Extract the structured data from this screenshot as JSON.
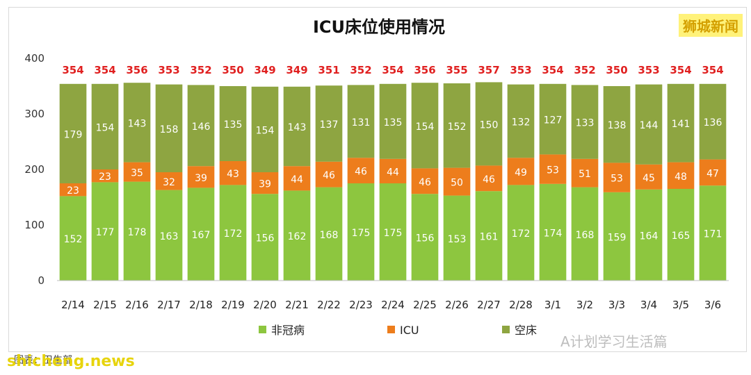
{
  "brand_tag": "狮城新闻",
  "watermarks": {
    "site": "shicheng.news",
    "account": "A计划学习生活篇",
    "source_prefix": "图表：",
    "source": "卫生部"
  },
  "colors": {
    "non_covid": "#8dc63f",
    "icu": "#ed7d1c",
    "vacant": "#8ea541",
    "total_label": "#e02020"
  },
  "chart_data": {
    "type": "bar",
    "stacked": true,
    "title": "ICU床位使用情况",
    "xlabel": "",
    "ylabel": "",
    "ylim": [
      0,
      400
    ],
    "yticks": [
      0,
      100,
      200,
      300,
      400
    ],
    "grid": false,
    "legend_position": "bottom",
    "categories": [
      "2/14",
      "2/15",
      "2/16",
      "2/17",
      "2/18",
      "2/19",
      "2/20",
      "2/21",
      "2/22",
      "2/23",
      "2/24",
      "2/25",
      "2/26",
      "2/27",
      "2/28",
      "3/1",
      "3/2",
      "3/3",
      "3/4",
      "3/5",
      "3/6"
    ],
    "series": [
      {
        "name": "非冠病",
        "values": [
          152,
          177,
          178,
          163,
          167,
          172,
          156,
          162,
          168,
          175,
          175,
          156,
          153,
          161,
          172,
          174,
          168,
          159,
          164,
          165,
          171
        ]
      },
      {
        "name": "ICU",
        "values": [
          23,
          23,
          35,
          32,
          39,
          43,
          39,
          44,
          46,
          46,
          44,
          46,
          50,
          46,
          49,
          53,
          51,
          53,
          45,
          48,
          47
        ]
      },
      {
        "name": "空床",
        "values": [
          179,
          154,
          143,
          158,
          146,
          135,
          154,
          143,
          137,
          131,
          135,
          154,
          152,
          150,
          132,
          127,
          133,
          138,
          144,
          141,
          136
        ]
      }
    ],
    "totals": [
      354,
      354,
      356,
      353,
      352,
      350,
      349,
      349,
      351,
      352,
      354,
      356,
      355,
      357,
      353,
      354,
      352,
      350,
      353,
      354,
      354
    ]
  }
}
